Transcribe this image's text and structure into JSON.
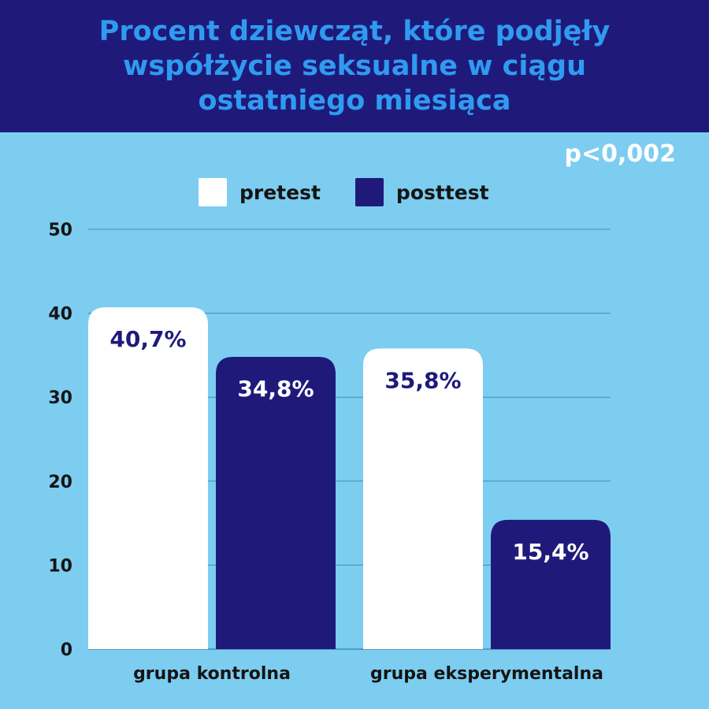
{
  "chart_data": {
    "type": "bar",
    "title": "Procent dziewcząt, które podjęły współżycie seksualne w ciągu ostatniego miesiąca",
    "annotation": "p<0,002",
    "categories": [
      "grupa kontrolna",
      "grupa eksperymentalna"
    ],
    "series": [
      {
        "name": "pretest",
        "values": [
          40.7,
          35.8
        ],
        "labels": [
          "40,7%",
          "35,8%"
        ],
        "color": "#ffffff",
        "label_color": "#1f1a7a"
      },
      {
        "name": "posttest",
        "values": [
          34.8,
          15.4
        ],
        "labels": [
          "34,8%",
          "15,4%"
        ],
        "color": "#1f1a7a",
        "label_color": "#ffffff"
      }
    ],
    "yticks": [
      "0",
      "10",
      "20",
      "30",
      "40",
      "50"
    ],
    "ylim": [
      0,
      50
    ],
    "grid": true,
    "legend": "top",
    "colors": {
      "background": "#7dcdf0",
      "header": "#1f1a7a",
      "title": "#2f9bf0",
      "grid": "#3e8fb0"
    }
  }
}
